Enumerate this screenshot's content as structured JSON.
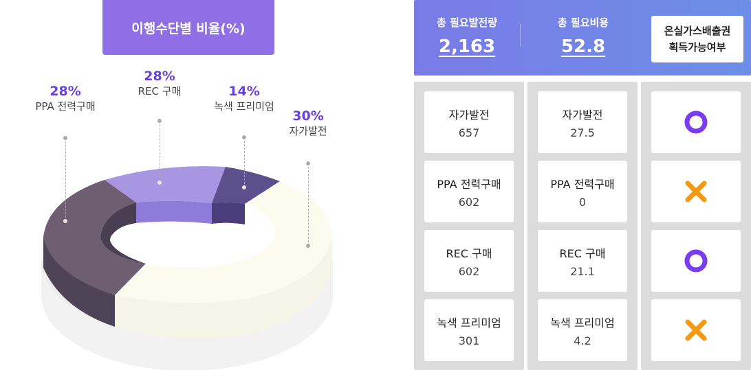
{
  "chart": {
    "title": "이행수단별 비율(%)",
    "segments": [
      {
        "name": "PPA 전력구매",
        "percent": "28%",
        "color": "#6d5e72"
      },
      {
        "name": "REC 구매",
        "percent": "28%",
        "color": "#a896e3"
      },
      {
        "name": "녹색 프리미엄",
        "percent": "14%",
        "color": "#5d4e8c"
      },
      {
        "name": "자가발전",
        "percent": "30%",
        "color": "#fdfaee"
      }
    ]
  },
  "chart_data": {
    "type": "pie",
    "title": "이행수단별 비율(%)",
    "categories": [
      "PPA 전력구매",
      "REC 구매",
      "녹색 프리미엄",
      "자가발전"
    ],
    "values": [
      28,
      28,
      14,
      30
    ]
  },
  "header": {
    "total_power_label": "총 필요발전량",
    "total_power_value": "2,163",
    "total_cost_label": "총 필요비용",
    "total_cost_value": "52.8",
    "emission_line1": "온실가스배출권",
    "emission_line2": "획득가능여부"
  },
  "power": [
    {
      "name": "자가발전",
      "value": "657"
    },
    {
      "name": "PPA 전력구매",
      "value": "602"
    },
    {
      "name": "REC 구매",
      "value": "602"
    },
    {
      "name": "녹색 프리미엄",
      "value": "301"
    }
  ],
  "cost": [
    {
      "name": "자가발전",
      "value": "27.5"
    },
    {
      "name": "PPA 전력구매",
      "value": "0"
    },
    {
      "name": "REC 구매",
      "value": "21.1"
    },
    {
      "name": "녹색 프리미엄",
      "value": "4.2"
    }
  ],
  "eligibility": [
    {
      "icon": "circle-o-icon",
      "color": "#7a3cf0"
    },
    {
      "icon": "x-mark-icon",
      "color": "#f39a12"
    },
    {
      "icon": "circle-o-icon",
      "color": "#7a3cf0"
    },
    {
      "icon": "x-mark-icon",
      "color": "#f39a12"
    }
  ]
}
